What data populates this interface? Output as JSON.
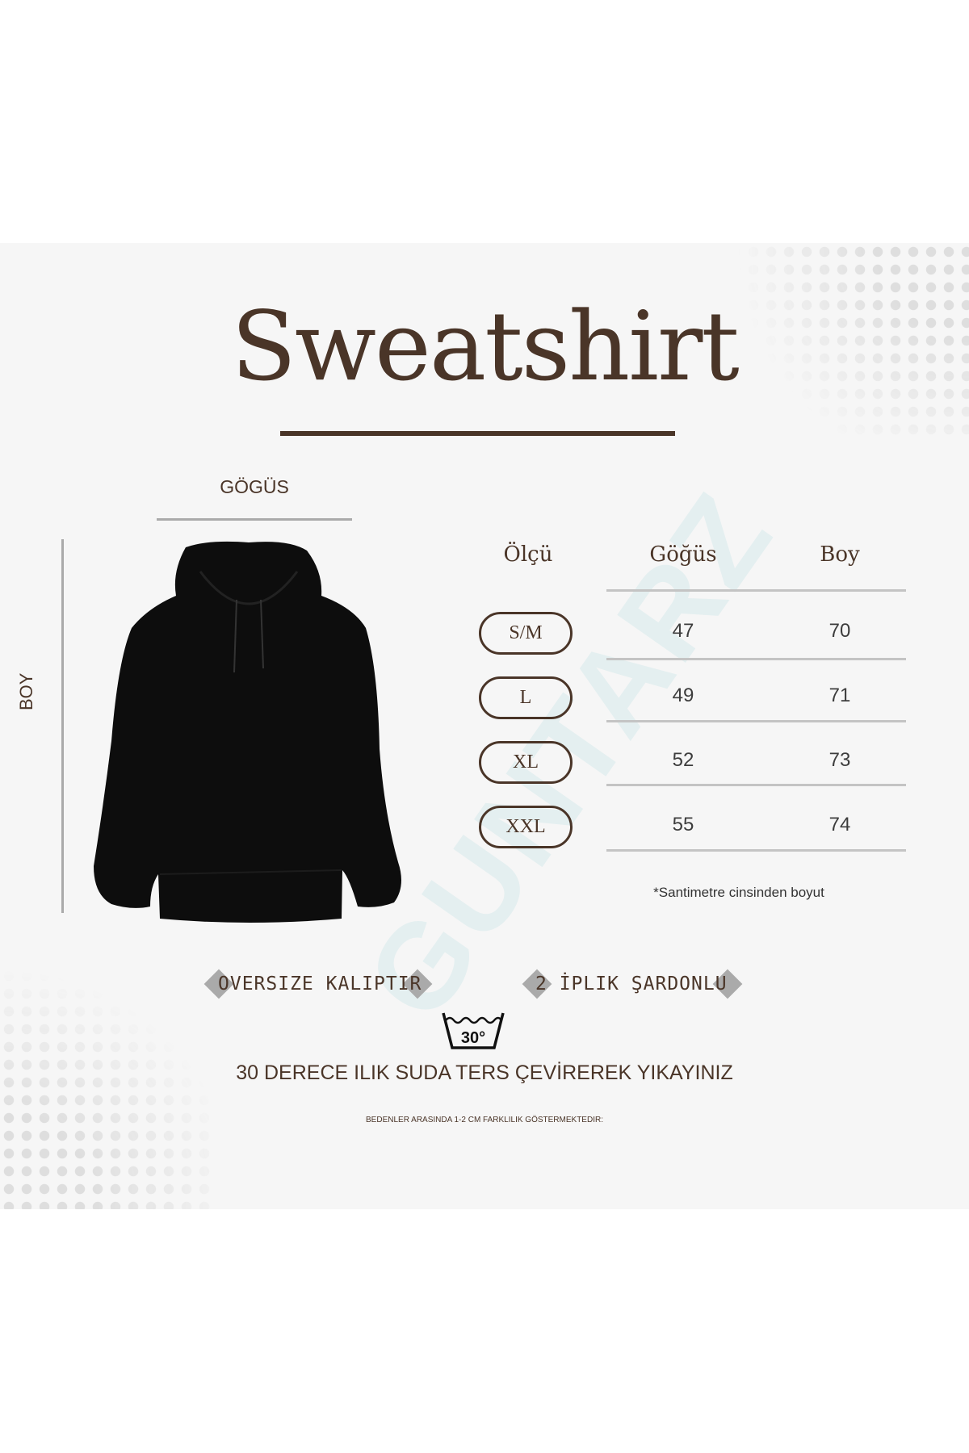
{
  "title": "Sweatshirt",
  "measure_labels": {
    "chest": "GÖGÜS",
    "length": "BOY"
  },
  "watermark": "GUNTARZ",
  "table": {
    "headers": [
      "Ölçü",
      "Göğüs",
      "Boy"
    ],
    "rows": [
      {
        "size": "S/M",
        "chest": "47",
        "length": "70"
      },
      {
        "size": "L",
        "chest": "49",
        "length": "71"
      },
      {
        "size": "XL",
        "chest": "52",
        "length": "73"
      },
      {
        "size": "XXL",
        "chest": "55",
        "length": "74"
      }
    ],
    "note": "*Santimetre cinsinden boyut"
  },
  "badges": [
    "OVERSIZE KALIPTIR",
    "2 İPLIK ŞARDONLU"
  ],
  "wash": {
    "icon": "wash-30-icon",
    "temp": "30°",
    "text": "30 DERECE ILIK SUDA TERS ÇEVİREREK YIKAYINIZ"
  },
  "disclaimer": "BEDENLER ARASINDA 1-2 CM FARKLILIK GÖSTERMEKTEDIR:",
  "colors": {
    "brown": "#4a3528",
    "panel": "#f6f6f6",
    "line": "#c4c4c4"
  }
}
